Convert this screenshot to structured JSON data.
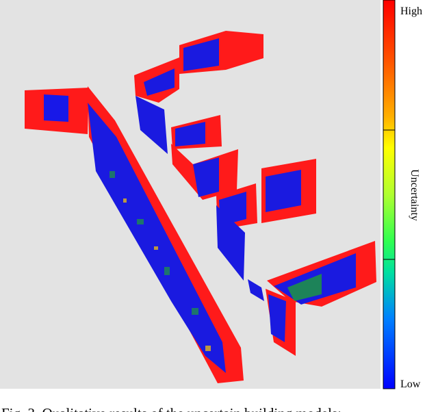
{
  "figure": {
    "colorbar": {
      "title": "Uncertainty",
      "high_label": "High",
      "low_label": "Low"
    },
    "caption": "Fig. 3. Qualitative results of the uncertain building models:"
  }
}
